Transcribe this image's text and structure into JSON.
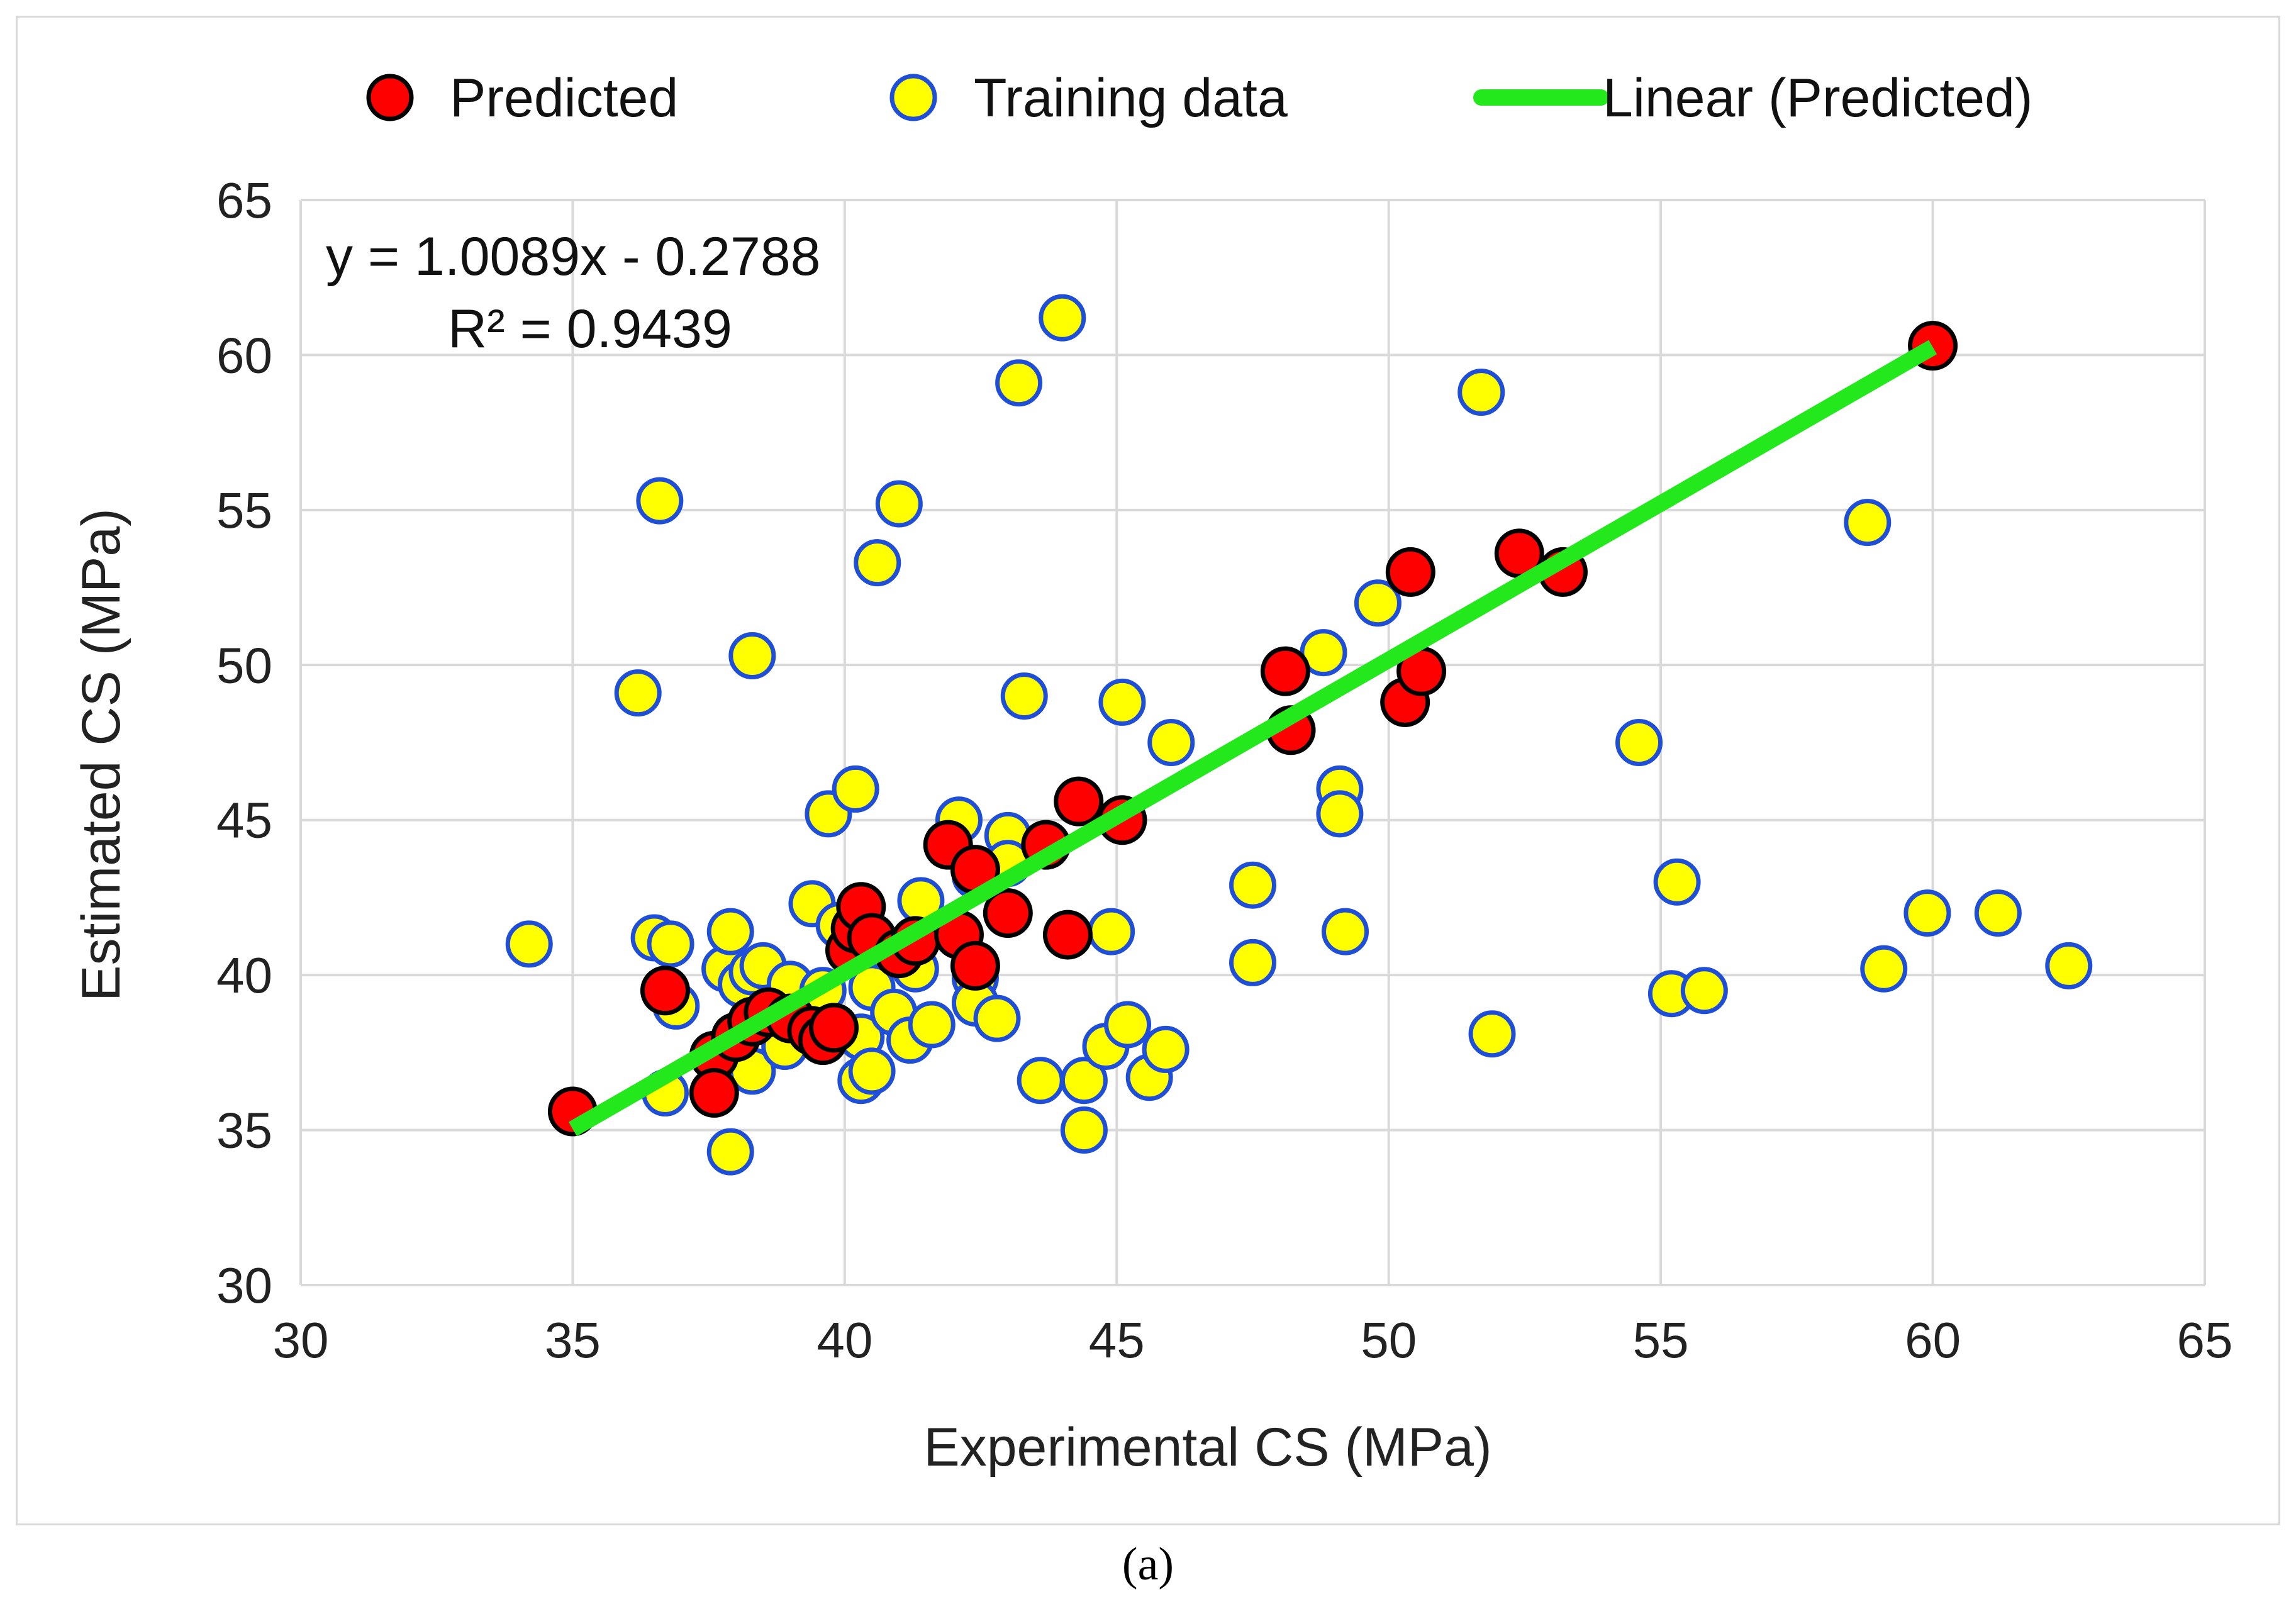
{
  "colors": {
    "predicted_fill": "#ff0000",
    "predicted_edge": "#000000",
    "training_fill": "#ffff00",
    "training_edge": "#1f4ed8",
    "trend": "#22e81c",
    "grid": "#d9d9d9",
    "text": "#222222"
  },
  "caption": "(a)",
  "chart_data": {
    "type": "scatter",
    "title": "",
    "xlabel": "Experimental CS (MPa)",
    "ylabel": "Estimated CS (MPa)",
    "xlim": [
      30,
      65
    ],
    "ylim": [
      30,
      65
    ],
    "xticks": [
      30,
      35,
      40,
      45,
      50,
      55,
      60,
      65
    ],
    "yticks": [
      30,
      35,
      40,
      45,
      50,
      55,
      60,
      65
    ],
    "grid": true,
    "legend": {
      "placement": "top",
      "items": [
        {
          "name": "Predicted",
          "marker": "circle-red"
        },
        {
          "name": "Training data",
          "marker": "circle-yellow"
        },
        {
          "name": "Linear (Predicted)",
          "marker": "line-green"
        }
      ]
    },
    "annotation": {
      "equation": "y = 1.0089x - 0.2788",
      "r2": "R² = 0.9439"
    },
    "trendline": {
      "slope": 1.0089,
      "intercept": -0.2788,
      "x_range": [
        35,
        60
      ]
    },
    "series": [
      {
        "name": "Predicted",
        "points": [
          [
            35.0,
            35.6
          ],
          [
            36.7,
            39.5
          ],
          [
            37.6,
            37.4
          ],
          [
            37.6,
            36.2
          ],
          [
            38.0,
            38.0
          ],
          [
            38.3,
            38.5
          ],
          [
            38.6,
            38.8
          ],
          [
            39.0,
            38.6
          ],
          [
            39.4,
            38.2
          ],
          [
            39.6,
            37.9
          ],
          [
            39.8,
            38.3
          ],
          [
            40.1,
            40.8
          ],
          [
            40.2,
            41.5
          ],
          [
            40.3,
            42.2
          ],
          [
            40.5,
            41.2
          ],
          [
            41.0,
            40.7
          ],
          [
            41.3,
            41.1
          ],
          [
            41.9,
            44.2
          ],
          [
            42.1,
            41.3
          ],
          [
            42.4,
            43.4
          ],
          [
            42.4,
            40.3
          ],
          [
            43.0,
            42.0
          ],
          [
            43.7,
            44.2
          ],
          [
            44.1,
            41.3
          ],
          [
            44.3,
            45.6
          ],
          [
            45.1,
            45.0
          ],
          [
            48.1,
            49.8
          ],
          [
            48.2,
            47.9
          ],
          [
            50.3,
            48.8
          ],
          [
            50.4,
            53.0
          ],
          [
            50.6,
            49.8
          ],
          [
            52.4,
            53.6
          ],
          [
            53.2,
            53.0
          ],
          [
            60.0,
            60.3
          ]
        ]
      },
      {
        "name": "Training data",
        "points": [
          [
            34.2,
            41.0
          ],
          [
            36.2,
            49.1
          ],
          [
            36.5,
            41.2
          ],
          [
            36.6,
            55.3
          ],
          [
            36.7,
            36.2
          ],
          [
            36.8,
            41.0
          ],
          [
            36.9,
            39.0
          ],
          [
            37.8,
            40.2
          ],
          [
            37.9,
            34.3
          ],
          [
            37.9,
            41.4
          ],
          [
            38.1,
            39.7
          ],
          [
            38.3,
            36.9
          ],
          [
            38.3,
            50.3
          ],
          [
            38.3,
            40.1
          ],
          [
            38.5,
            40.3
          ],
          [
            38.9,
            37.7
          ],
          [
            39.0,
            39.7
          ],
          [
            39.4,
            42.3
          ],
          [
            39.4,
            38.4
          ],
          [
            39.6,
            39.5
          ],
          [
            39.7,
            45.2
          ],
          [
            39.9,
            41.6
          ],
          [
            40.2,
            46.0
          ],
          [
            40.3,
            38.0
          ],
          [
            40.3,
            36.6
          ],
          [
            40.5,
            39.6
          ],
          [
            40.5,
            36.9
          ],
          [
            40.6,
            53.3
          ],
          [
            40.9,
            38.8
          ],
          [
            41.0,
            55.2
          ],
          [
            41.2,
            37.9
          ],
          [
            41.3,
            40.2
          ],
          [
            41.4,
            42.4
          ],
          [
            41.6,
            38.4
          ],
          [
            42.1,
            45.0
          ],
          [
            42.4,
            43.2
          ],
          [
            42.4,
            39.9
          ],
          [
            42.4,
            39.1
          ],
          [
            42.8,
            38.6
          ],
          [
            43.0,
            44.5
          ],
          [
            43.0,
            43.6
          ],
          [
            43.2,
            59.1
          ],
          [
            43.3,
            49.0
          ],
          [
            43.6,
            36.6
          ],
          [
            44.0,
            61.2
          ],
          [
            44.4,
            35.0
          ],
          [
            44.4,
            36.6
          ],
          [
            44.8,
            37.7
          ],
          [
            44.9,
            41.4
          ],
          [
            45.1,
            48.8
          ],
          [
            45.2,
            38.4
          ],
          [
            45.6,
            36.7
          ],
          [
            45.9,
            37.6
          ],
          [
            46.0,
            47.5
          ],
          [
            47.5,
            42.9
          ],
          [
            47.5,
            40.4
          ],
          [
            48.8,
            50.4
          ],
          [
            49.1,
            46.0
          ],
          [
            49.1,
            45.2
          ],
          [
            49.2,
            41.4
          ],
          [
            49.8,
            52.0
          ],
          [
            51.7,
            58.8
          ],
          [
            51.9,
            38.1
          ],
          [
            54.6,
            47.5
          ],
          [
            55.2,
            39.4
          ],
          [
            55.3,
            43.0
          ],
          [
            55.8,
            39.5
          ],
          [
            58.8,
            54.6
          ],
          [
            59.1,
            40.2
          ],
          [
            59.9,
            42.0
          ],
          [
            61.2,
            42.0
          ],
          [
            62.5,
            40.3
          ]
        ]
      }
    ]
  }
}
